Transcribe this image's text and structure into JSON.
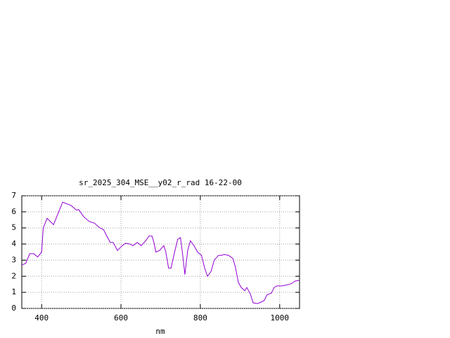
{
  "chart_data": {
    "type": "line",
    "title": "sr_2025_304_MSE__y02_r_rad 16-22-00",
    "xlabel": "nm",
    "x": [
      350,
      360,
      370,
      380,
      390,
      400,
      404,
      414,
      430,
      453,
      474,
      488,
      493,
      506,
      520,
      533,
      547,
      556,
      564,
      573,
      580,
      591,
      603,
      612,
      623,
      630,
      641,
      651,
      662,
      671,
      678,
      683,
      688,
      697,
      708,
      713,
      720,
      726,
      735,
      743,
      750,
      757,
      761,
      768,
      775,
      784,
      793,
      803,
      811,
      818,
      827,
      835,
      846,
      853,
      860,
      871,
      882,
      888,
      896,
      903,
      912,
      917,
      926,
      933,
      944,
      954,
      961,
      968,
      979,
      986,
      993,
      1005,
      1016,
      1025,
      1030,
      1039,
      1050
    ],
    "series": [
      {
        "name": "sr_2025_304_MSE__y02_r_rad",
        "color": "#9400d3",
        "values": [
          2.7,
          2.8,
          3.4,
          3.4,
          3.2,
          3.5,
          5.0,
          5.6,
          5.2,
          6.6,
          6.4,
          6.1,
          6.15,
          5.7,
          5.4,
          5.3,
          5.0,
          4.9,
          4.5,
          4.1,
          4.1,
          3.6,
          3.9,
          4.05,
          4.0,
          3.9,
          4.1,
          3.9,
          4.2,
          4.5,
          4.5,
          4.1,
          3.5,
          3.6,
          3.9,
          3.5,
          2.5,
          2.5,
          3.5,
          4.3,
          4.4,
          3.0,
          2.1,
          3.6,
          4.2,
          3.9,
          3.5,
          3.3,
          2.5,
          2.0,
          2.3,
          3.0,
          3.3,
          3.3,
          3.35,
          3.3,
          3.1,
          2.6,
          1.6,
          1.3,
          1.1,
          1.3,
          0.9,
          0.35,
          0.3,
          0.4,
          0.5,
          0.85,
          0.95,
          1.3,
          1.4,
          1.4,
          1.45,
          1.5,
          1.55,
          1.7,
          1.75
        ]
      }
    ],
    "xlim": [
      350,
      1050
    ],
    "xticks": [
      400,
      600,
      800,
      1000
    ],
    "ylim": [
      0,
      7
    ],
    "yticks": [
      0,
      1,
      2,
      3,
      4,
      5,
      6,
      7
    ],
    "grid": true
  }
}
